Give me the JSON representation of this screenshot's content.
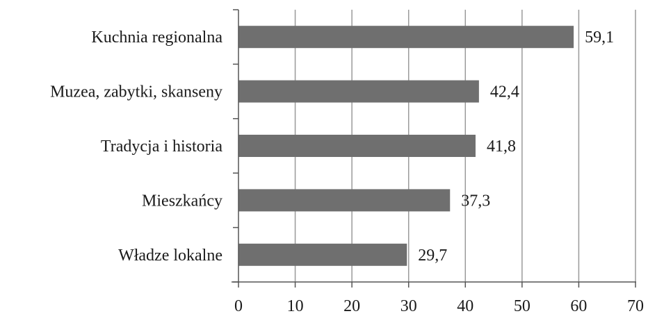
{
  "chart_data": {
    "type": "bar",
    "orientation": "horizontal",
    "title": "",
    "xlabel": "",
    "ylabel": "",
    "categories": [
      "Kuchnia regionalna",
      "Muzea, zabytki, skanseny",
      "Tradycja i historia",
      "Mieszkańcy",
      "Władze lokalne"
    ],
    "values": [
      59.1,
      42.4,
      41.8,
      37.3,
      29.7
    ],
    "value_labels": [
      "59,1",
      "42,4",
      "41,8",
      "37,3",
      "29,7"
    ],
    "xlim": [
      0,
      70
    ],
    "x_ticks": [
      "0",
      "10",
      "20",
      "30",
      "40",
      "50",
      "60",
      "70"
    ],
    "grid": "vertical",
    "bar_color": "#6f6f6f"
  }
}
